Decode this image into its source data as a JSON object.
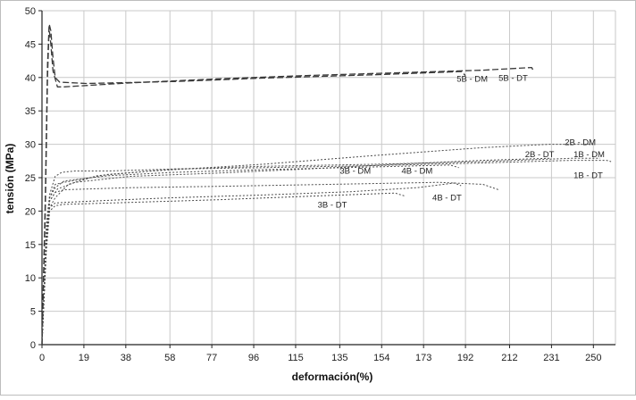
{
  "chart_data": {
    "type": "line",
    "xlabel": "deformación(%)",
    "ylabel": "tensión (MPa)",
    "xlim": [
      0,
      260
    ],
    "ylim": [
      0,
      50
    ],
    "x_ticks": [
      0,
      19,
      38,
      58,
      77,
      96,
      115,
      135,
      154,
      173,
      192,
      212,
      231,
      250
    ],
    "y_ticks": [
      0,
      5,
      10,
      15,
      20,
      25,
      30,
      35,
      40,
      45,
      50
    ],
    "grid": true,
    "legend": "none",
    "series": [
      {
        "name": "5B - DM",
        "style": "dashed",
        "label_at": [
          188,
          39.4
        ],
        "points": [
          [
            0,
            0
          ],
          [
            1.5,
            20
          ],
          [
            2.5,
            40
          ],
          [
            3.3,
            48
          ],
          [
            4,
            47
          ],
          [
            5,
            43
          ],
          [
            6,
            40
          ],
          [
            8,
            39.3
          ],
          [
            20,
            39.1
          ],
          [
            60,
            39.4
          ],
          [
            100,
            39.9
          ],
          [
            150,
            40.4
          ],
          [
            190,
            40.9
          ],
          [
            192,
            40.3
          ]
        ]
      },
      {
        "name": "5B - DT",
        "style": "dashed",
        "label_at": [
          207,
          39.5
        ],
        "points": [
          [
            0,
            0
          ],
          [
            1.5,
            22
          ],
          [
            2.5,
            42
          ],
          [
            3.2,
            47.5
          ],
          [
            4,
            45
          ],
          [
            5,
            41
          ],
          [
            7,
            38.6
          ],
          [
            10,
            38.6
          ],
          [
            40,
            39.2
          ],
          [
            80,
            39.8
          ],
          [
            120,
            40.3
          ],
          [
            160,
            40.7
          ],
          [
            200,
            41.1
          ],
          [
            222,
            41.5
          ],
          [
            223,
            40.9
          ]
        ]
      },
      {
        "name": "2B - DM",
        "style": "dotted",
        "label_at": [
          237,
          29.9
        ],
        "points": [
          [
            0,
            0
          ],
          [
            2,
            15
          ],
          [
            3.5,
            20.5
          ],
          [
            6,
            22
          ],
          [
            12,
            24
          ],
          [
            25,
            25.3
          ],
          [
            50,
            26
          ],
          [
            100,
            27
          ],
          [
            150,
            28.3
          ],
          [
            200,
            29.5
          ],
          [
            230,
            30
          ],
          [
            250,
            30
          ]
        ]
      },
      {
        "name": "2B - DT",
        "style": "dotted",
        "label_at": [
          219,
          28.1
        ],
        "points": [
          [
            0,
            0
          ],
          [
            2,
            16
          ],
          [
            3.5,
            21.5
          ],
          [
            7,
            23.3
          ],
          [
            15,
            24.3
          ],
          [
            40,
            25.2
          ],
          [
            80,
            25.7
          ],
          [
            120,
            26.3
          ],
          [
            160,
            27
          ],
          [
            200,
            27.6
          ],
          [
            230,
            27.9
          ]
        ]
      },
      {
        "name": "1B - DM",
        "style": "dotted",
        "label_at": [
          241,
          28.1
        ],
        "points": [
          [
            0,
            0
          ],
          [
            2,
            17
          ],
          [
            3.5,
            22
          ],
          [
            6,
            24
          ],
          [
            10,
            24.3
          ],
          [
            30,
            25.5
          ],
          [
            60,
            26.3
          ],
          [
            100,
            26.7
          ],
          [
            150,
            27
          ],
          [
            200,
            27.4
          ],
          [
            240,
            27.9
          ],
          [
            253,
            27.9
          ]
        ]
      },
      {
        "name": "1B - DT",
        "style": "dotted",
        "label_at": [
          241,
          24.9
        ],
        "points": [
          [
            0,
            0
          ],
          [
            2,
            18
          ],
          [
            3.5,
            22.5
          ],
          [
            6,
            25.2
          ],
          [
            9,
            25.8
          ],
          [
            15,
            26
          ],
          [
            30,
            26
          ],
          [
            60,
            26.3
          ],
          [
            100,
            26.5
          ],
          [
            150,
            26.8
          ],
          [
            200,
            27.2
          ],
          [
            240,
            27.6
          ],
          [
            256,
            27.6
          ],
          [
            258,
            27.4
          ]
        ]
      },
      {
        "name": "3B - DM",
        "style": "dotted",
        "label_at": [
          135,
          25.6
        ],
        "points": [
          [
            0,
            0
          ],
          [
            2,
            16
          ],
          [
            3.5,
            20.5
          ],
          [
            6,
            21.2
          ],
          [
            10,
            21.3
          ],
          [
            30,
            21.6
          ],
          [
            60,
            22
          ],
          [
            100,
            22.4
          ],
          [
            140,
            22.9
          ],
          [
            170,
            23.5
          ],
          [
            187,
            24.2
          ],
          [
            190,
            23.8
          ]
        ]
      },
      {
        "name": "4B - DM",
        "style": "dotted",
        "label_at": [
          163,
          25.6
        ],
        "points": [
          [
            0,
            0
          ],
          [
            2,
            16.5
          ],
          [
            3.5,
            22
          ],
          [
            6,
            23.5
          ],
          [
            10,
            24.5
          ],
          [
            30,
            25.3
          ],
          [
            60,
            25.8
          ],
          [
            100,
            26.2
          ],
          [
            150,
            26.6
          ],
          [
            185,
            26.9
          ],
          [
            189,
            26.5
          ]
        ]
      },
      {
        "name": "3B - DT",
        "style": "dotted",
        "label_at": [
          125,
          20.5
        ],
        "points": [
          [
            0,
            0
          ],
          [
            2,
            14
          ],
          [
            3.5,
            20
          ],
          [
            6,
            20.8
          ],
          [
            10,
            21
          ],
          [
            40,
            21.3
          ],
          [
            80,
            21.7
          ],
          [
            120,
            22.2
          ],
          [
            160,
            22.7
          ],
          [
            165,
            22.2
          ]
        ]
      },
      {
        "name": "4B - DT",
        "style": "dotted",
        "label_at": [
          177,
          21.6
        ],
        "points": [
          [
            0,
            0
          ],
          [
            2,
            15
          ],
          [
            3.5,
            21.5
          ],
          [
            6,
            22.8
          ],
          [
            10,
            23.2
          ],
          [
            40,
            23.5
          ],
          [
            80,
            23.7
          ],
          [
            130,
            24
          ],
          [
            180,
            24.3
          ],
          [
            200,
            24
          ],
          [
            207,
            23.2
          ]
        ]
      }
    ]
  }
}
